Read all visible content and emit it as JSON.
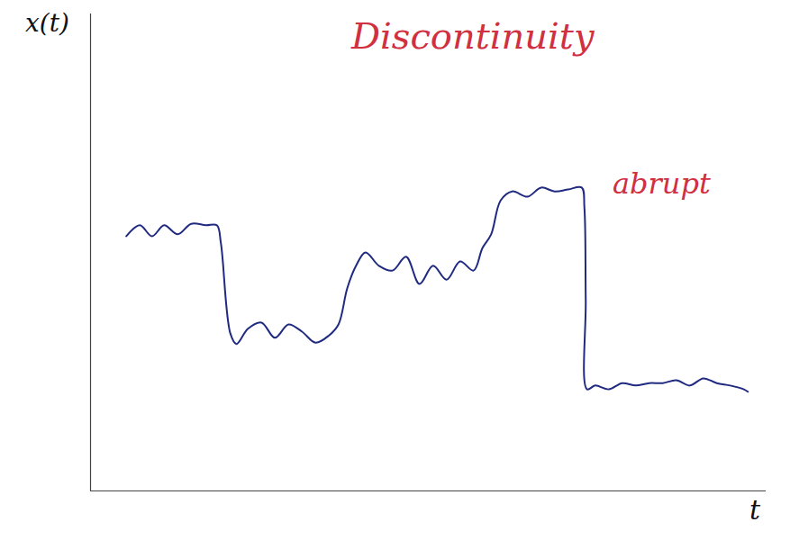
{
  "chart_data": {
    "type": "line",
    "title": "Discontinuity",
    "x_label": "t",
    "y_label": "x(t)",
    "annotations": [
      {
        "text": "abrupt"
      }
    ],
    "x": [
      5.3,
      7.3,
      9.1,
      10.9,
      12.9,
      14.9,
      17.1,
      18.7,
      19.3,
      20.7,
      21.6,
      23.3,
      25.3,
      27.3,
      29.3,
      31.3,
      33.3,
      35.3,
      36.7,
      38,
      39.3,
      40.7,
      42.7,
      44.7,
      46.7,
      48.7,
      50.7,
      52.7,
      54.7,
      56.7,
      58,
      59.3,
      60.7,
      62.4,
      64.7,
      66.7,
      68.7,
      70.7,
      72.7,
      73.1,
      73.3,
      73.5,
      74.7,
      76.7,
      78.7,
      80.7,
      82.7,
      84.7,
      86.7,
      88.7,
      90.7,
      92.7,
      94.7,
      96.7,
      97.3
    ],
    "values": [
      53.4,
      55.7,
      53.4,
      55.7,
      53.8,
      56,
      55.7,
      55.7,
      51.9,
      33,
      30.8,
      34,
      35.3,
      32.1,
      34.9,
      33.4,
      31.1,
      32.6,
      34.9,
      42.5,
      47.2,
      50,
      47.2,
      46.2,
      49.1,
      43.4,
      47.2,
      44.3,
      48.1,
      46.2,
      50.9,
      53.8,
      60.9,
      62.8,
      61.7,
      63.6,
      62.8,
      63.2,
      63.6,
      59.4,
      40,
      21.3,
      22.1,
      21.3,
      22.6,
      22.1,
      22.6,
      22.6,
      23.2,
      22.1,
      23.6,
      22.6,
      22.1,
      21.3,
      20.8
    ],
    "color": "#1f2a80",
    "xlim": [
      0,
      100
    ],
    "ylim": [
      0,
      100
    ],
    "xticks": [],
    "yticks": [],
    "tick_labels": false,
    "grid": false
  }
}
